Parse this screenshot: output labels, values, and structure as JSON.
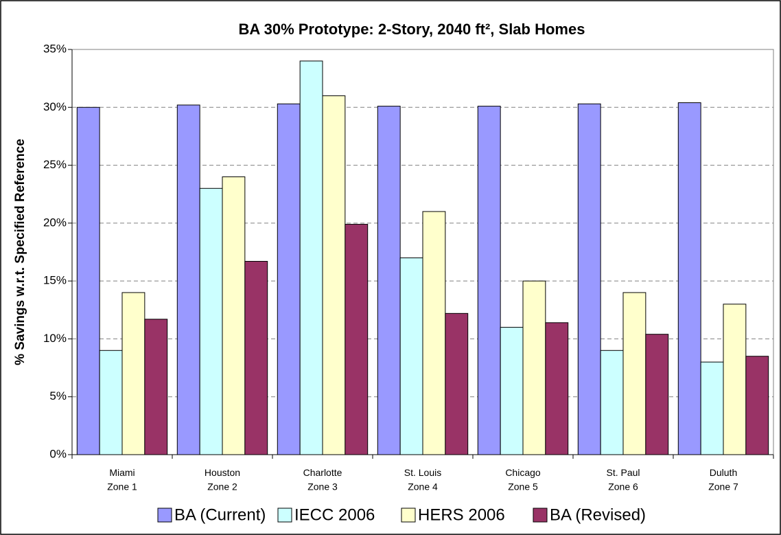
{
  "chart_data": {
    "type": "bar",
    "title": "BA 30% Prototype: 2-Story, 2040 ft², Slab Homes",
    "y_label": "% Savings w.r.t. Specified Reference",
    "categories": [
      "Miami\nZone 1",
      "Houston\nZone 2",
      "Charlotte\nZone 3",
      "St. Louis\nZone 4",
      "Chicago\nZone 5",
      "St. Paul\nZone 6",
      "Duluth\nZone 7"
    ],
    "series": [
      {
        "name": "BA (Current)",
        "color": "#9999ff",
        "values": [
          30.0,
          30.2,
          30.3,
          30.1,
          30.1,
          30.3,
          30.4
        ]
      },
      {
        "name": "IECC 2006",
        "color": "#ccffff",
        "values": [
          9,
          23,
          34,
          17,
          11,
          9,
          8
        ]
      },
      {
        "name": "HERS 2006",
        "color": "#ffffcc",
        "values": [
          14,
          24,
          31,
          21,
          15,
          14,
          13
        ]
      },
      {
        "name": "BA (Revised)",
        "color": "#993366",
        "values": [
          11.7,
          16.7,
          19.9,
          12.2,
          11.4,
          10.4,
          8.5
        ]
      }
    ],
    "ylim": [
      0,
      35
    ],
    "yticks": [
      {
        "value": 0,
        "label": "0%"
      },
      {
        "value": 5,
        "label": "5%"
      },
      {
        "value": 10,
        "label": "10%"
      },
      {
        "value": 15,
        "label": "15%"
      },
      {
        "value": 20,
        "label": "20%"
      },
      {
        "value": 25,
        "label": "25%"
      },
      {
        "value": 30,
        "label": "30%"
      },
      {
        "value": 35,
        "label": "35%"
      }
    ],
    "grid": true,
    "legend": "bottom"
  }
}
